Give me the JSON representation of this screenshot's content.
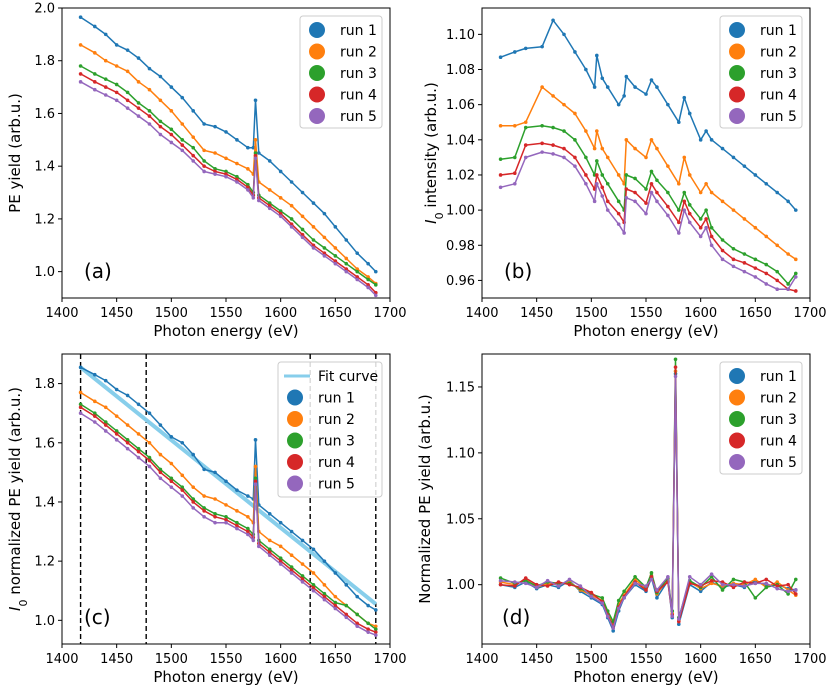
{
  "chart_data": [
    {
      "panel_label": "(a)",
      "type": "line",
      "xlabel": "Photon energy (eV)",
      "ylabel": "PE yield (arb.u.)",
      "xlim": [
        1400,
        1700
      ],
      "ylim": [
        0.9,
        2.0
      ],
      "xticks": [
        "1400",
        "1450",
        "1500",
        "1550",
        "1600",
        "1650",
        "1700"
      ],
      "yticks": [
        "1.0",
        "1.2",
        "1.4",
        "1.6",
        "1.8",
        "2.0"
      ],
      "ytick_values": [
        1.0,
        1.2,
        1.4,
        1.6,
        1.8,
        2.0
      ],
      "legend": "top-right",
      "x": [
        1417,
        1430,
        1440,
        1450,
        1460,
        1470,
        1480,
        1490,
        1500,
        1510,
        1520,
        1530,
        1540,
        1550,
        1560,
        1570,
        1575,
        1577,
        1580,
        1590,
        1600,
        1610,
        1620,
        1630,
        1640,
        1650,
        1660,
        1670,
        1680,
        1687
      ],
      "series": [
        {
          "name": "run 1",
          "color": "#1f77b4",
          "values": [
            1.965,
            1.93,
            1.9,
            1.86,
            1.84,
            1.81,
            1.77,
            1.74,
            1.7,
            1.66,
            1.61,
            1.56,
            1.55,
            1.53,
            1.5,
            1.47,
            1.47,
            1.65,
            1.45,
            1.42,
            1.38,
            1.34,
            1.3,
            1.26,
            1.22,
            1.17,
            1.12,
            1.07,
            1.03,
            1.0
          ]
        },
        {
          "name": "run 2",
          "color": "#ff7f0e",
          "values": [
            1.86,
            1.83,
            1.8,
            1.78,
            1.76,
            1.72,
            1.69,
            1.65,
            1.61,
            1.56,
            1.51,
            1.46,
            1.45,
            1.43,
            1.41,
            1.39,
            1.37,
            1.5,
            1.34,
            1.31,
            1.28,
            1.25,
            1.21,
            1.17,
            1.13,
            1.09,
            1.05,
            1.01,
            0.98,
            0.955
          ]
        },
        {
          "name": "run 3",
          "color": "#2ca02c",
          "values": [
            1.78,
            1.75,
            1.73,
            1.71,
            1.68,
            1.64,
            1.61,
            1.57,
            1.54,
            1.5,
            1.47,
            1.42,
            1.39,
            1.38,
            1.36,
            1.33,
            1.3,
            1.45,
            1.29,
            1.26,
            1.23,
            1.2,
            1.16,
            1.12,
            1.09,
            1.06,
            1.03,
            1.0,
            0.97,
            0.95
          ]
        },
        {
          "name": "run 4",
          "color": "#d62728",
          "values": [
            1.75,
            1.72,
            1.7,
            1.68,
            1.65,
            1.62,
            1.59,
            1.55,
            1.52,
            1.48,
            1.44,
            1.4,
            1.38,
            1.37,
            1.35,
            1.32,
            1.29,
            1.44,
            1.28,
            1.25,
            1.22,
            1.18,
            1.14,
            1.1,
            1.07,
            1.04,
            1.01,
            0.98,
            0.95,
            0.92
          ]
        },
        {
          "name": "run 5",
          "color": "#9467bd",
          "values": [
            1.72,
            1.69,
            1.67,
            1.65,
            1.62,
            1.59,
            1.56,
            1.52,
            1.49,
            1.46,
            1.42,
            1.38,
            1.37,
            1.36,
            1.34,
            1.31,
            1.28,
            1.43,
            1.27,
            1.24,
            1.21,
            1.17,
            1.13,
            1.09,
            1.06,
            1.03,
            1.0,
            0.97,
            0.94,
            0.91
          ]
        }
      ]
    },
    {
      "panel_label": "(b)",
      "type": "line",
      "xlabel": "Photon energy (eV)",
      "ylabel": "I0 intensity (arb.u.)",
      "xlim": [
        1400,
        1700
      ],
      "ylim": [
        0.95,
        1.115
      ],
      "xticks": [
        "1400",
        "1450",
        "1500",
        "1550",
        "1600",
        "1650",
        "1700"
      ],
      "yticks": [
        "0.96",
        "0.98",
        "1.00",
        "1.02",
        "1.04",
        "1.06",
        "1.08",
        "1.10"
      ],
      "ytick_values": [
        0.96,
        0.98,
        1.0,
        1.02,
        1.04,
        1.06,
        1.08,
        1.1
      ],
      "legend": "top-right",
      "x": [
        1417,
        1430,
        1440,
        1455,
        1465,
        1475,
        1485,
        1495,
        1503,
        1505,
        1510,
        1515,
        1525,
        1530,
        1532,
        1540,
        1550,
        1555,
        1560,
        1570,
        1580,
        1585,
        1590,
        1600,
        1605,
        1610,
        1620,
        1630,
        1640,
        1650,
        1660,
        1670,
        1680,
        1687
      ],
      "series": [
        {
          "name": "run 1",
          "color": "#1f77b4",
          "values": [
            1.087,
            1.09,
            1.092,
            1.093,
            1.108,
            1.1,
            1.09,
            1.08,
            1.07,
            1.088,
            1.075,
            1.07,
            1.06,
            1.065,
            1.076,
            1.07,
            1.066,
            1.074,
            1.07,
            1.06,
            1.05,
            1.064,
            1.055,
            1.04,
            1.045,
            1.04,
            1.035,
            1.03,
            1.025,
            1.02,
            1.015,
            1.01,
            1.005,
            1.0
          ]
        },
        {
          "name": "run 2",
          "color": "#ff7f0e",
          "values": [
            1.048,
            1.048,
            1.05,
            1.07,
            1.065,
            1.06,
            1.055,
            1.045,
            1.035,
            1.045,
            1.035,
            1.03,
            1.02,
            1.015,
            1.04,
            1.035,
            1.03,
            1.04,
            1.035,
            1.025,
            1.015,
            1.03,
            1.02,
            1.01,
            1.015,
            1.01,
            1.005,
            1.0,
            0.995,
            0.99,
            0.985,
            0.98,
            0.975,
            0.972
          ]
        },
        {
          "name": "run 3",
          "color": "#2ca02c",
          "values": [
            1.029,
            1.03,
            1.047,
            1.048,
            1.047,
            1.045,
            1.04,
            1.03,
            1.02,
            1.028,
            1.02,
            1.015,
            1.005,
            1.0,
            1.02,
            1.018,
            1.012,
            1.022,
            1.017,
            1.01,
            1.0,
            1.01,
            1.003,
            0.995,
            1.0,
            0.99,
            0.983,
            0.978,
            0.975,
            0.972,
            0.969,
            0.965,
            0.958,
            0.964
          ]
        },
        {
          "name": "run 4",
          "color": "#d62728",
          "values": [
            1.02,
            1.021,
            1.037,
            1.038,
            1.037,
            1.035,
            1.03,
            1.02,
            1.012,
            1.02,
            1.013,
            1.005,
            0.998,
            0.993,
            1.012,
            1.01,
            1.004,
            1.015,
            1.01,
            1.002,
            0.993,
            1.005,
            0.998,
            0.99,
            0.995,
            0.985,
            0.977,
            0.972,
            0.97,
            0.967,
            0.964,
            0.96,
            0.955,
            0.954
          ]
        },
        {
          "name": "run 5",
          "color": "#9467bd",
          "values": [
            1.013,
            1.015,
            1.03,
            1.033,
            1.032,
            1.03,
            1.025,
            1.015,
            1.005,
            1.015,
            1.008,
            1.0,
            0.992,
            0.987,
            1.007,
            1.005,
            0.998,
            1.01,
            1.005,
            0.997,
            0.987,
            1.0,
            0.993,
            0.985,
            0.99,
            0.98,
            0.972,
            0.968,
            0.965,
            0.962,
            0.958,
            0.955,
            0.955,
            0.962
          ]
        }
      ]
    },
    {
      "panel_label": "(c)",
      "type": "line",
      "xlabel": "Photon energy (eV)",
      "ylabel": "I0 normalized PE yield (arb.u.)",
      "xlim": [
        1400,
        1700
      ],
      "ylim": [
        0.92,
        1.9
      ],
      "xticks": [
        "1400",
        "1450",
        "1500",
        "1550",
        "1600",
        "1650",
        "1700"
      ],
      "yticks": [
        "1.0",
        "1.2",
        "1.4",
        "1.6",
        "1.8"
      ],
      "ytick_values": [
        1.0,
        1.2,
        1.4,
        1.6,
        1.8
      ],
      "legend": "top-right",
      "vlines": [
        1417,
        1477,
        1627,
        1687
      ],
      "fit_curve": {
        "name": "Fit curve",
        "color": "#87ceeb",
        "x": [
          1417,
          1687
        ],
        "values": [
          1.855,
          1.055
        ]
      },
      "x": [
        1417,
        1430,
        1440,
        1450,
        1460,
        1470,
        1480,
        1490,
        1500,
        1510,
        1520,
        1530,
        1540,
        1550,
        1560,
        1570,
        1575,
        1577,
        1580,
        1590,
        1600,
        1610,
        1620,
        1630,
        1640,
        1650,
        1660,
        1670,
        1680,
        1687
      ],
      "series": [
        {
          "name": "run 1",
          "color": "#1f77b4",
          "values": [
            1.855,
            1.83,
            1.81,
            1.78,
            1.76,
            1.73,
            1.7,
            1.66,
            1.62,
            1.6,
            1.56,
            1.51,
            1.5,
            1.47,
            1.44,
            1.42,
            1.41,
            1.61,
            1.39,
            1.36,
            1.33,
            1.3,
            1.27,
            1.24,
            1.2,
            1.16,
            1.12,
            1.08,
            1.05,
            1.035
          ]
        },
        {
          "name": "run 2",
          "color": "#ff7f0e",
          "values": [
            1.77,
            1.74,
            1.72,
            1.69,
            1.66,
            1.63,
            1.6,
            1.56,
            1.53,
            1.49,
            1.45,
            1.42,
            1.41,
            1.39,
            1.37,
            1.35,
            1.33,
            1.52,
            1.3,
            1.27,
            1.25,
            1.22,
            1.19,
            1.16,
            1.12,
            1.08,
            1.05,
            1.02,
            0.99,
            0.98
          ]
        },
        {
          "name": "run 3",
          "color": "#2ca02c",
          "values": [
            1.73,
            1.7,
            1.67,
            1.64,
            1.61,
            1.58,
            1.55,
            1.51,
            1.48,
            1.45,
            1.41,
            1.38,
            1.36,
            1.35,
            1.33,
            1.31,
            1.29,
            1.48,
            1.27,
            1.24,
            1.21,
            1.18,
            1.15,
            1.12,
            1.09,
            1.06,
            1.05,
            1.02,
            0.99,
            0.97
          ]
        },
        {
          "name": "run 4",
          "color": "#d62728",
          "values": [
            1.72,
            1.69,
            1.66,
            1.63,
            1.6,
            1.57,
            1.54,
            1.5,
            1.47,
            1.44,
            1.4,
            1.37,
            1.35,
            1.34,
            1.32,
            1.3,
            1.28,
            1.47,
            1.26,
            1.23,
            1.2,
            1.17,
            1.14,
            1.11,
            1.08,
            1.05,
            1.02,
            0.99,
            0.97,
            0.96
          ]
        },
        {
          "name": "run 5",
          "color": "#9467bd",
          "values": [
            1.7,
            1.67,
            1.64,
            1.61,
            1.58,
            1.55,
            1.52,
            1.48,
            1.45,
            1.42,
            1.38,
            1.35,
            1.33,
            1.33,
            1.31,
            1.29,
            1.27,
            1.46,
            1.25,
            1.22,
            1.19,
            1.16,
            1.13,
            1.1,
            1.07,
            1.04,
            1.01,
            0.98,
            0.96,
            0.95
          ]
        }
      ]
    },
    {
      "panel_label": "(d)",
      "type": "line",
      "xlabel": "Photon energy (eV)",
      "ylabel": "Normalized PE yield (arb.u.)",
      "xlim": [
        1400,
        1700
      ],
      "ylim": [
        0.955,
        1.175
      ],
      "xticks": [
        "1400",
        "1450",
        "1500",
        "1550",
        "1600",
        "1650",
        "1700"
      ],
      "yticks": [
        "1.00",
        "1.05",
        "1.10",
        "1.15"
      ],
      "ytick_values": [
        1.0,
        1.05,
        1.1,
        1.15
      ],
      "legend": "top-right",
      "x": [
        1417,
        1430,
        1440,
        1450,
        1460,
        1470,
        1480,
        1490,
        1500,
        1510,
        1515,
        1520,
        1525,
        1530,
        1540,
        1550,
        1555,
        1560,
        1570,
        1574,
        1577,
        1580,
        1590,
        1600,
        1610,
        1620,
        1630,
        1640,
        1650,
        1660,
        1670,
        1680,
        1687
      ],
      "series": [
        {
          "name": "run 1",
          "color": "#1f77b4",
          "values": [
            1.0,
            0.998,
            1.002,
            0.997,
            1.0,
            0.998,
            1.003,
            0.995,
            0.99,
            0.985,
            0.975,
            0.965,
            0.98,
            0.99,
            1.0,
            0.995,
            1.005,
            0.99,
            1.003,
            0.975,
            1.16,
            0.97,
            1.0,
            0.995,
            1.002,
            0.998,
            1.0,
            0.998,
            1.003,
            0.999,
            1.0,
            0.997,
            0.996
          ]
        },
        {
          "name": "run 2",
          "color": "#ff7f0e",
          "values": [
            1.002,
            1.0,
            1.004,
            0.998,
            1.001,
            1.0,
            1.002,
            0.996,
            0.992,
            0.988,
            0.978,
            0.97,
            0.985,
            0.992,
            1.004,
            0.997,
            1.007,
            0.993,
            1.004,
            0.978,
            1.162,
            0.973,
            1.002,
            0.997,
            1.001,
            0.999,
            1.001,
            1.0,
            1.004,
            0.998,
            1.002,
            0.996,
            0.992
          ]
        },
        {
          "name": "run 3",
          "color": "#2ca02c",
          "values": [
            1.005,
            1.001,
            1.003,
            0.999,
            1.002,
            1.001,
            1.001,
            0.997,
            0.993,
            0.99,
            0.98,
            0.972,
            0.988,
            0.995,
            1.006,
            0.998,
            1.009,
            0.994,
            1.005,
            0.98,
            1.171,
            0.975,
            1.003,
            0.998,
            1.006,
            0.996,
            1.004,
            1.002,
            0.99,
            0.998,
            1.0,
            0.993,
            1.004
          ]
        },
        {
          "name": "run 4",
          "color": "#d62728",
          "values": [
            1.0,
            0.999,
            1.005,
            1.0,
            0.999,
            1.002,
            1.0,
            0.998,
            0.994,
            0.987,
            0.977,
            0.968,
            0.983,
            0.991,
            1.002,
            0.996,
            1.006,
            0.995,
            1.002,
            0.977,
            1.165,
            0.972,
            1.001,
            0.999,
            1.003,
            1.002,
            0.998,
            1.002,
            1.001,
            1.004,
            0.999,
            1.0,
            0.993
          ]
        },
        {
          "name": "run 5",
          "color": "#9467bd",
          "values": [
            1.003,
            1.002,
            1.001,
            0.998,
            1.003,
            0.999,
            1.004,
            0.999,
            0.991,
            0.986,
            0.976,
            0.967,
            0.982,
            0.99,
            1.001,
            0.999,
            1.004,
            0.996,
            1.006,
            0.976,
            1.158,
            0.974,
            1.006,
            1.0,
            1.008,
            1.0,
            1.0,
            0.999,
            1.001,
            1.001,
            0.997,
            0.995,
            0.996
          ]
        }
      ]
    }
  ]
}
